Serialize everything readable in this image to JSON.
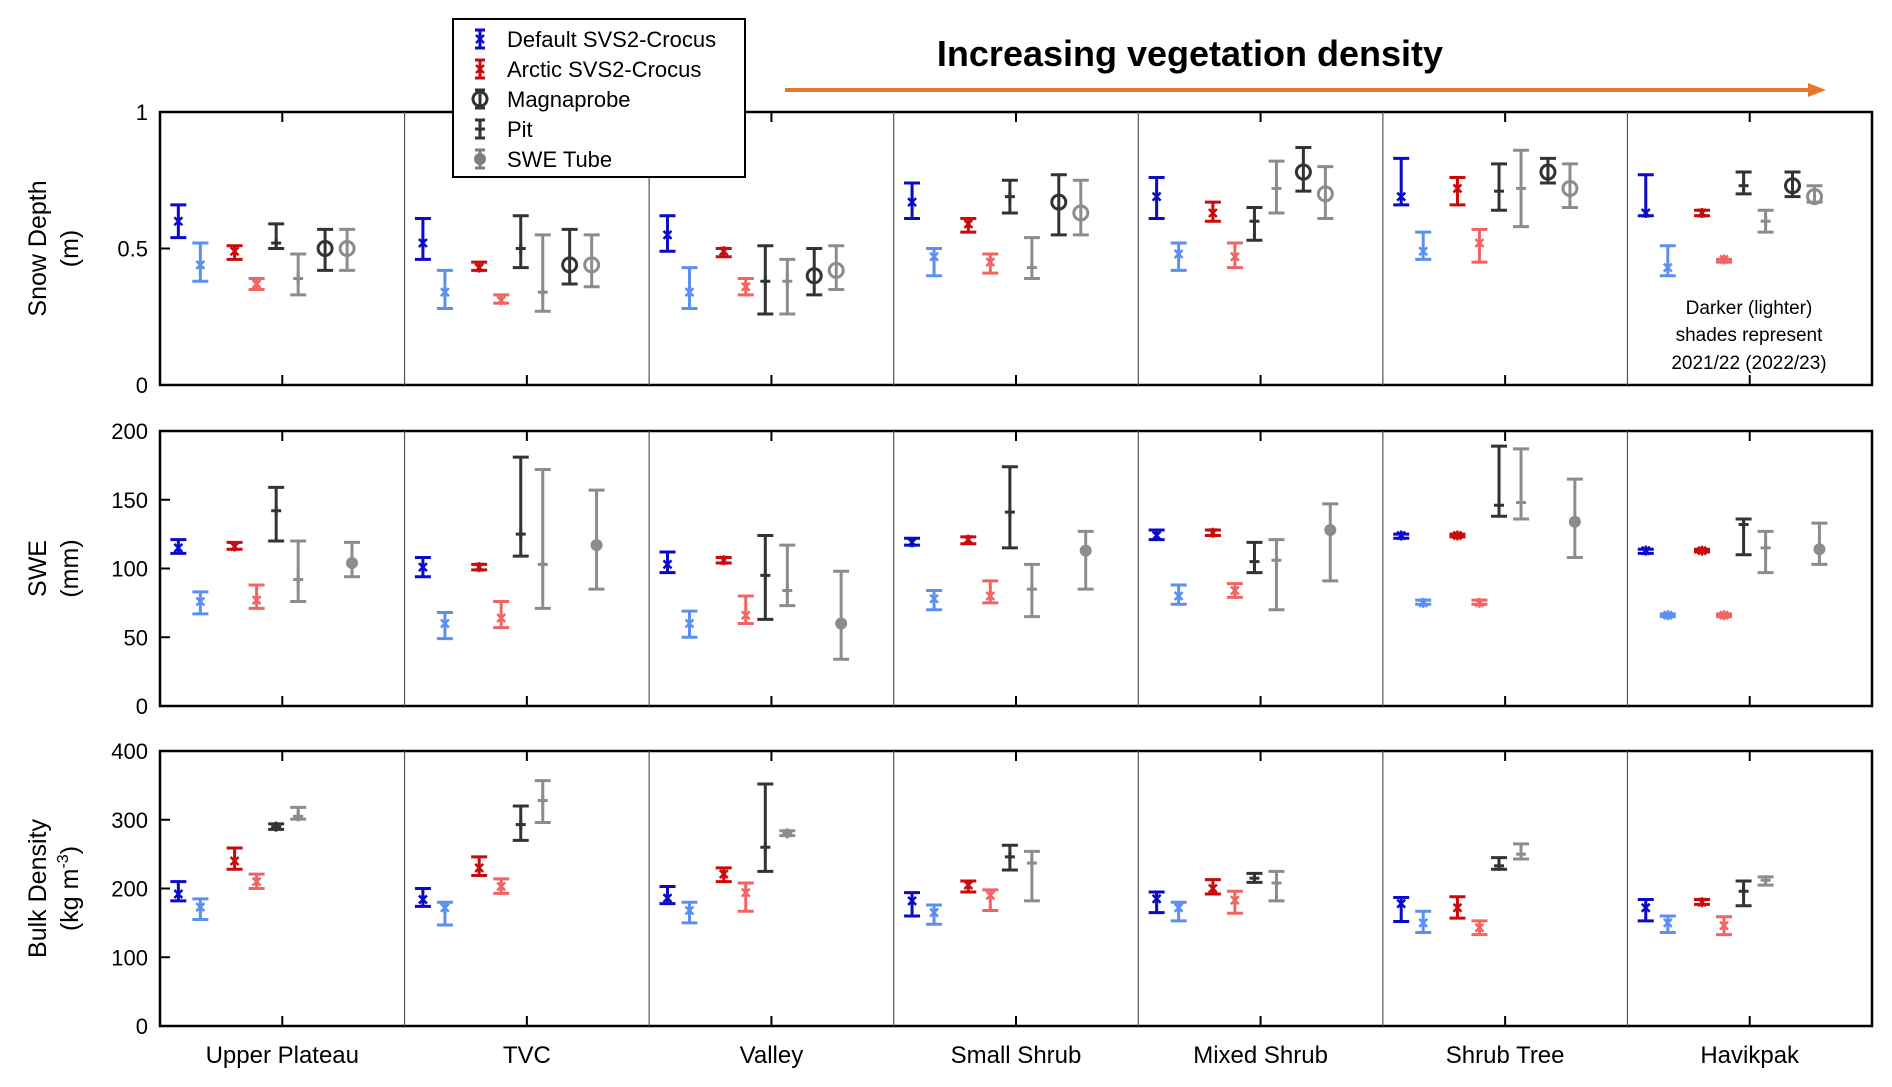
{
  "header": {
    "title": "Increasing vegetation density",
    "arrow_color": "#E8762D"
  },
  "legend": {
    "items": [
      {
        "label": "Default SVS2-Crocus",
        "color": "#0A0AC8",
        "marker": "asterisk"
      },
      {
        "label": "Arctic SVS2-Crocus",
        "color": "#C80A0A",
        "marker": "asterisk"
      },
      {
        "label": "Magnaprobe",
        "color": "#333333",
        "marker": "circle"
      },
      {
        "label": "Pit",
        "color": "#333333",
        "marker": "plus"
      },
      {
        "label": "SWE Tube",
        "color": "#7F7F7F",
        "marker": "dot"
      }
    ]
  },
  "note": {
    "lines": [
      "Darker (lighter)",
      "shades represent",
      "2021/22 (2022/23)"
    ]
  },
  "colors": {
    "default_dark": "#0A0AC8",
    "default_light": "#5B8FF0",
    "arctic_dark": "#C80A0A",
    "arctic_light": "#F06464",
    "obs_dark": "#333333",
    "obs_light": "#8C8C8C"
  },
  "chart_data": [
    {
      "type": "scatter",
      "panel": "snow_depth",
      "ylabel_lines": [
        "Snow Depth",
        "(m)"
      ],
      "ylim": [
        0,
        1
      ],
      "yticks": [
        "0",
        "0.5",
        "1"
      ],
      "categories": [
        "Upper Plateau",
        "TVC",
        "Valley",
        "Small Shrub",
        "Mixed Shrub",
        "Shrub Tree",
        "Havikpak"
      ],
      "series": [
        {
          "name": "Default SVS2-Crocus",
          "year": "2021/22",
          "values": [
            0.6,
            0.52,
            0.55,
            0.67,
            0.69,
            0.69,
            0.63
          ],
          "low": [
            0.54,
            0.46,
            0.49,
            0.61,
            0.61,
            0.66,
            0.62
          ],
          "high": [
            0.66,
            0.61,
            0.62,
            0.74,
            0.76,
            0.83,
            0.77
          ]
        },
        {
          "name": "Default SVS2-Crocus",
          "year": "2022/23",
          "values": [
            0.44,
            0.34,
            0.34,
            0.47,
            0.48,
            0.49,
            0.43
          ],
          "low": [
            0.38,
            0.28,
            0.28,
            0.4,
            0.42,
            0.46,
            0.4
          ],
          "high": [
            0.52,
            0.42,
            0.43,
            0.5,
            0.52,
            0.56,
            0.51
          ]
        },
        {
          "name": "Arctic SVS2-Crocus",
          "year": "2021/22",
          "values": [
            0.49,
            0.43,
            0.49,
            0.59,
            0.63,
            0.72,
            0.63
          ],
          "low": [
            0.46,
            0.42,
            0.47,
            0.56,
            0.6,
            0.66,
            0.62
          ],
          "high": [
            0.51,
            0.45,
            0.5,
            0.61,
            0.67,
            0.76,
            0.64
          ]
        },
        {
          "name": "Arctic SVS2-Crocus",
          "year": "2022/23",
          "values": [
            0.37,
            0.31,
            0.36,
            0.45,
            0.47,
            0.52,
            0.46
          ],
          "low": [
            0.35,
            0.3,
            0.33,
            0.41,
            0.43,
            0.45,
            0.45
          ],
          "high": [
            0.39,
            0.33,
            0.39,
            0.48,
            0.52,
            0.57,
            0.46
          ]
        },
        {
          "name": "Pit",
          "year": "2021/22",
          "values": [
            0.52,
            0.5,
            0.38,
            0.69,
            0.6,
            0.71,
            0.73
          ],
          "low": [
            0.5,
            0.43,
            0.26,
            0.63,
            0.53,
            0.64,
            0.7
          ],
          "high": [
            0.59,
            0.62,
            0.51,
            0.75,
            0.65,
            0.81,
            0.78
          ]
        },
        {
          "name": "Pit",
          "year": "2022/23",
          "values": [
            0.39,
            0.34,
            0.38,
            0.43,
            0.72,
            0.72,
            0.6
          ],
          "low": [
            0.33,
            0.27,
            0.26,
            0.39,
            0.63,
            0.58,
            0.56
          ],
          "high": [
            0.48,
            0.55,
            0.46,
            0.54,
            0.82,
            0.86,
            0.64
          ]
        },
        {
          "name": "Magnaprobe",
          "year": "2021/22",
          "values": [
            0.5,
            0.44,
            0.4,
            0.67,
            0.78,
            0.78,
            0.73
          ],
          "low": [
            0.42,
            0.37,
            0.33,
            0.55,
            0.71,
            0.74,
            0.69
          ],
          "high": [
            0.57,
            0.57,
            0.5,
            0.77,
            0.87,
            0.83,
            0.78
          ]
        },
        {
          "name": "Magnaprobe",
          "year": "2022/23",
          "values": [
            0.5,
            0.44,
            0.42,
            0.63,
            0.7,
            0.72,
            0.69
          ],
          "low": [
            0.42,
            0.36,
            0.35,
            0.55,
            0.61,
            0.65,
            0.67
          ],
          "high": [
            0.57,
            0.55,
            0.51,
            0.75,
            0.8,
            0.81,
            0.73
          ]
        }
      ]
    },
    {
      "type": "scatter",
      "panel": "swe",
      "ylabel_lines": [
        "SWE",
        "(mm)"
      ],
      "ylim": [
        0,
        200
      ],
      "yticks": [
        "0",
        "50",
        "100",
        "150",
        "200"
      ],
      "categories": [
        "Upper Plateau",
        "TVC",
        "Valley",
        "Small Shrub",
        "Mixed Shrub",
        "Shrub Tree",
        "Havikpak"
      ],
      "series": [
        {
          "name": "Default SVS2-Crocus",
          "year": "2021/22",
          "values": [
            115,
            101,
            103,
            119,
            124,
            124,
            113
          ],
          "low": [
            111,
            94,
            97,
            117,
            121,
            122,
            111
          ],
          "high": [
            121,
            108,
            112,
            122,
            128,
            125,
            114
          ]
        },
        {
          "name": "Default SVS2-Crocus",
          "year": "2022/23",
          "values": [
            76,
            60,
            60,
            78,
            80,
            75,
            66
          ],
          "low": [
            67,
            49,
            50,
            70,
            74,
            74,
            65
          ],
          "high": [
            83,
            68,
            69,
            84,
            88,
            77,
            67
          ]
        },
        {
          "name": "Arctic SVS2-Crocus",
          "year": "2021/22",
          "values": [
            116,
            101,
            106,
            121,
            126,
            124,
            113
          ],
          "low": [
            114,
            99,
            104,
            118,
            124,
            123,
            112
          ],
          "high": [
            119,
            103,
            108,
            123,
            128,
            125,
            114
          ]
        },
        {
          "name": "Arctic SVS2-Crocus",
          "year": "2022/23",
          "values": [
            77,
            64,
            66,
            80,
            84,
            75,
            66
          ],
          "low": [
            71,
            57,
            60,
            75,
            79,
            74,
            65
          ],
          "high": [
            88,
            76,
            80,
            91,
            89,
            77,
            67
          ]
        },
        {
          "name": "Pit",
          "year": "2021/22",
          "values": [
            142,
            125,
            95,
            141,
            105,
            146,
            132
          ],
          "low": [
            120,
            109,
            63,
            115,
            97,
            138,
            110
          ],
          "high": [
            159,
            181,
            124,
            174,
            119,
            189,
            136
          ]
        },
        {
          "name": "Pit",
          "year": "2022/23",
          "values": [
            92,
            103,
            84,
            85,
            106,
            148,
            115
          ],
          "low": [
            76,
            71,
            73,
            65,
            70,
            136,
            97
          ],
          "high": [
            120,
            172,
            117,
            103,
            121,
            187,
            127
          ]
        },
        {
          "name": "SWE Tube",
          "year": "2021/22",
          "values": [
            104,
            117,
            60,
            113,
            128,
            134,
            114
          ],
          "low": [
            94,
            85,
            34,
            85,
            91,
            108,
            103
          ],
          "high": [
            119,
            157,
            98,
            127,
            147,
            165,
            133
          ]
        }
      ]
    },
    {
      "type": "scatter",
      "panel": "bulk_density",
      "ylabel_lines": [
        "Bulk Density",
        "(kg m",
        "-3",
        ")"
      ],
      "ylim": [
        0,
        400
      ],
      "yticks": [
        "0",
        "100",
        "200",
        "300",
        "400"
      ],
      "categories": [
        "Upper Plateau",
        "TVC",
        "Valley",
        "Small Shrub",
        "Mixed Shrub",
        "Shrub Tree",
        "Havikpak"
      ],
      "series": [
        {
          "name": "Default SVS2-Crocus",
          "year": "2021/22",
          "values": [
            192,
            184,
            186,
            182,
            185,
            178,
            172
          ],
          "low": [
            182,
            174,
            178,
            160,
            165,
            152,
            153
          ],
          "high": [
            210,
            200,
            203,
            194,
            195,
            187,
            184
          ]
        },
        {
          "name": "Default SVS2-Crocus",
          "year": "2022/23",
          "values": [
            173,
            172,
            168,
            165,
            172,
            150,
            150
          ],
          "low": [
            155,
            147,
            150,
            148,
            153,
            136,
            136
          ],
          "high": [
            185,
            180,
            180,
            176,
            180,
            167,
            160
          ]
        },
        {
          "name": "Arctic SVS2-Crocus",
          "year": "2021/22",
          "values": [
            240,
            230,
            221,
            205,
            200,
            172,
            180
          ],
          "low": [
            228,
            219,
            210,
            195,
            192,
            157,
            177
          ],
          "high": [
            259,
            246,
            230,
            211,
            213,
            188,
            184
          ]
        },
        {
          "name": "Arctic SVS2-Crocus",
          "year": "2022/23",
          "values": [
            210,
            203,
            194,
            190,
            183,
            143,
            146
          ],
          "low": [
            200,
            193,
            167,
            168,
            164,
            133,
            133
          ],
          "high": [
            221,
            214,
            208,
            198,
            196,
            153,
            159
          ]
        },
        {
          "name": "Pit",
          "year": "2021/22",
          "values": [
            290,
            293,
            260,
            246,
            215,
            233,
            196
          ],
          "low": [
            286,
            270,
            225,
            227,
            209,
            228,
            175
          ],
          "high": [
            294,
            320,
            352,
            263,
            222,
            245,
            211
          ]
        },
        {
          "name": "Pit",
          "year": "2022/23",
          "values": [
            305,
            328,
            280,
            237,
            208,
            250,
            212
          ],
          "low": [
            301,
            296,
            277,
            182,
            182,
            243,
            205
          ],
          "high": [
            318,
            357,
            284,
            254,
            225,
            265,
            217
          ]
        }
      ]
    }
  ]
}
